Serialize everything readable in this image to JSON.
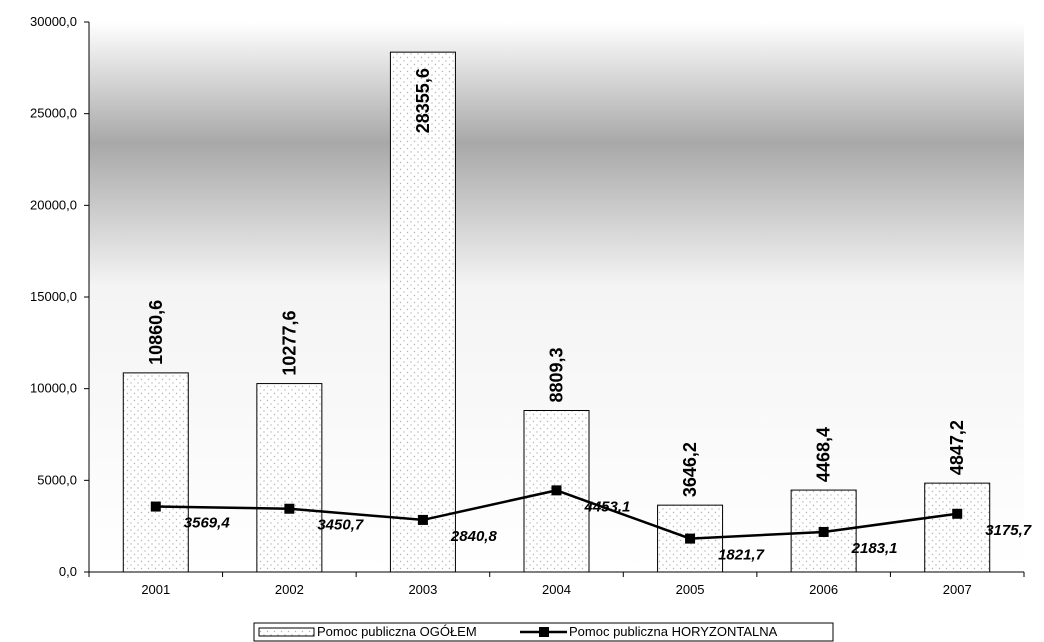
{
  "chart_data": {
    "type": "bar",
    "categories": [
      "2001",
      "2002",
      "2003",
      "2004",
      "2005",
      "2006",
      "2007"
    ],
    "series": [
      {
        "name": "Pomoc publiczna OGÓŁEM",
        "type": "bar",
        "values": [
          10860.6,
          10277.6,
          28355.6,
          8809.3,
          3646.2,
          4468.4,
          4847.2
        ],
        "labels": [
          "10860,6",
          "10277,6",
          "28355,6",
          "8809,3",
          "3646,2",
          "4468,4",
          "4847,2"
        ]
      },
      {
        "name": "Pomoc publiczna HORYZONTALNA",
        "type": "line",
        "values": [
          3569.4,
          3450.7,
          2840.8,
          4453.1,
          1821.7,
          2183.1,
          3175.7
        ],
        "labels": [
          "3569,4",
          "3450,7",
          "2840,8",
          "4453,1",
          "1821,7",
          "2183,1",
          "3175,7"
        ]
      }
    ],
    "yticks": [
      0,
      5000,
      10000,
      15000,
      20000,
      25000,
      30000
    ],
    "ytick_labels": [
      "0,0",
      "5000,0",
      "10000,0",
      "15000,0",
      "20000,0",
      "25000,0",
      "30000,0"
    ],
    "ylim": [
      0,
      30000
    ],
    "legend_position": "bottom-center",
    "grid": false,
    "title": "",
    "xlabel": "",
    "ylabel": "",
    "colors": {
      "bar_fill": "#ffffff",
      "bar_dots": "#b4b4b4",
      "line": "#000000",
      "plot_gradient_mid": "#a8a8a8"
    }
  }
}
